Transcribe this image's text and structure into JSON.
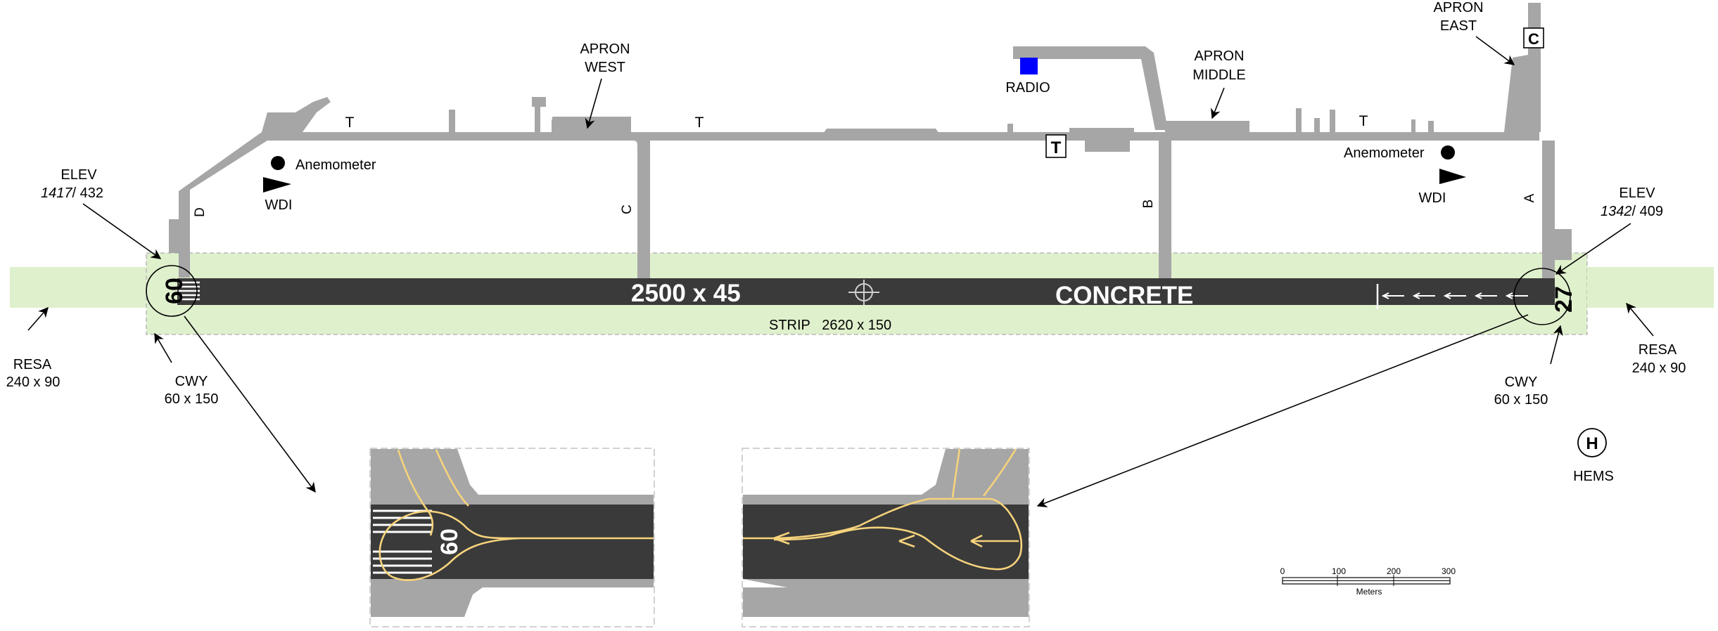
{
  "runway": {
    "dimensions": "2500 x 45",
    "surface": "CONCRETE",
    "strip": "STRIP   2620 x 150",
    "designator_west": "60",
    "designator_east": "27"
  },
  "elevations": {
    "west": {
      "label": "ELEV",
      "ft": "1417",
      "sep": "/ ",
      "m": "432"
    },
    "east": {
      "label": "ELEV",
      "ft": "1342",
      "sep": "/ ",
      "m": "409"
    }
  },
  "resa": {
    "west": {
      "label": "RESA",
      "dims": "240 x 90"
    },
    "east": {
      "label": "RESA",
      "dims": "240 x 90"
    }
  },
  "clearway": {
    "west": {
      "label": "CWY",
      "dims": "60 x 150"
    },
    "east": {
      "label": "CWY",
      "dims": "60 x 150"
    }
  },
  "taxiways": {
    "parallel": "T",
    "a": "A",
    "b": "B",
    "c": "C",
    "d": "D"
  },
  "aprons": {
    "west": [
      "APRON",
      "WEST"
    ],
    "middle": [
      "APRON",
      "MIDDLE"
    ],
    "east": [
      "APRON",
      "EAST"
    ],
    "east_symbol": "C"
  },
  "facilities": {
    "radio": "RADIO",
    "terminal_symbol": "T",
    "anemometer_west": "Anemometer",
    "anemometer_east": "Anemometer",
    "wdi_west": "WDI",
    "wdi_east": "WDI",
    "hems_symbol": "H",
    "hems": "HEMS"
  },
  "inset": {
    "designator": "60"
  },
  "scale": {
    "ticks": [
      "0",
      "100",
      "200",
      "300"
    ],
    "unit": "Meters"
  },
  "colors": {
    "runway": "#3a3a3a",
    "taxiway": "#a6a6a6",
    "strip": "#dff0cc",
    "radio": "#0000ff",
    "markings_yellow": "#f6d37c"
  }
}
